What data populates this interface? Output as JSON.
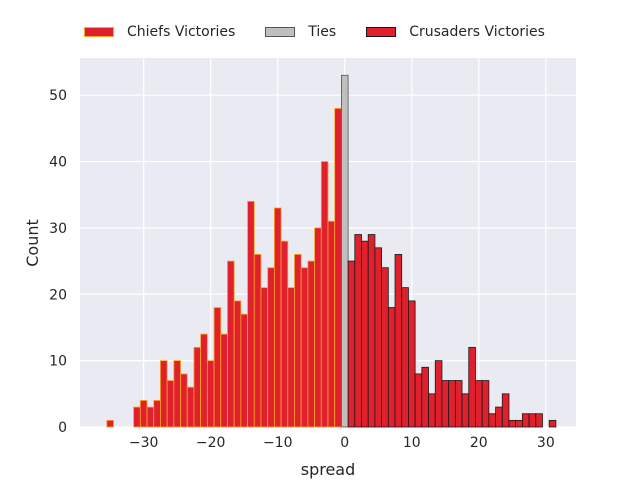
{
  "chart_data": {
    "type": "bar",
    "subtype": "histogram",
    "xlabel": "spread",
    "ylabel": "Count",
    "xlim": [
      -39.5,
      34.5
    ],
    "ylim": [
      0,
      55.6
    ],
    "xticks": [
      -30,
      -20,
      -10,
      0,
      10,
      20,
      30
    ],
    "yticks": [
      0,
      10,
      20,
      30,
      40,
      50
    ],
    "grid": true,
    "legend_position": "top",
    "bin_width": 1,
    "series": [
      {
        "name": "Chiefs Victories",
        "fill": "#e0202c",
        "edge": "#f5a623",
        "bins": [
          {
            "x": -35,
            "count": 1
          },
          {
            "x": -31,
            "count": 3
          },
          {
            "x": -30,
            "count": 4
          },
          {
            "x": -29,
            "count": 3
          },
          {
            "x": -28,
            "count": 4
          },
          {
            "x": -27,
            "count": 10
          },
          {
            "x": -26,
            "count": 7
          },
          {
            "x": -25,
            "count": 10
          },
          {
            "x": -24,
            "count": 8
          },
          {
            "x": -23,
            "count": 6
          },
          {
            "x": -22,
            "count": 12
          },
          {
            "x": -21,
            "count": 14
          },
          {
            "x": -20,
            "count": 10
          },
          {
            "x": -19,
            "count": 18
          },
          {
            "x": -18,
            "count": 14
          },
          {
            "x": -17,
            "count": 25
          },
          {
            "x": -16,
            "count": 19
          },
          {
            "x": -15,
            "count": 17
          },
          {
            "x": -14,
            "count": 34
          },
          {
            "x": -13,
            "count": 26
          },
          {
            "x": -12,
            "count": 21
          },
          {
            "x": -11,
            "count": 24
          },
          {
            "x": -10,
            "count": 33
          },
          {
            "x": -9,
            "count": 28
          },
          {
            "x": -8,
            "count": 21
          },
          {
            "x": -7,
            "count": 26
          },
          {
            "x": -6,
            "count": 24
          },
          {
            "x": -5,
            "count": 25
          },
          {
            "x": -4,
            "count": 30
          },
          {
            "x": -3,
            "count": 40
          },
          {
            "x": -2,
            "count": 31
          },
          {
            "x": -1,
            "count": 48
          }
        ]
      },
      {
        "name": "Ties",
        "fill": "#bfbfbf",
        "edge": "#555555",
        "bins": [
          {
            "x": 0,
            "count": 53
          }
        ]
      },
      {
        "name": "Crusaders Victories",
        "fill": "#e0202c",
        "edge": "#1a1a1a",
        "bins": [
          {
            "x": 1,
            "count": 25
          },
          {
            "x": 2,
            "count": 29
          },
          {
            "x": 3,
            "count": 28
          },
          {
            "x": 4,
            "count": 29
          },
          {
            "x": 5,
            "count": 27
          },
          {
            "x": 6,
            "count": 24
          },
          {
            "x": 7,
            "count": 18
          },
          {
            "x": 8,
            "count": 26
          },
          {
            "x": 9,
            "count": 21
          },
          {
            "x": 10,
            "count": 19
          },
          {
            "x": 11,
            "count": 8
          },
          {
            "x": 12,
            "count": 9
          },
          {
            "x": 13,
            "count": 5
          },
          {
            "x": 14,
            "count": 10
          },
          {
            "x": 15,
            "count": 7
          },
          {
            "x": 16,
            "count": 7
          },
          {
            "x": 17,
            "count": 7
          },
          {
            "x": 18,
            "count": 5
          },
          {
            "x": 19,
            "count": 12
          },
          {
            "x": 20,
            "count": 7
          },
          {
            "x": 21,
            "count": 7
          },
          {
            "x": 22,
            "count": 2
          },
          {
            "x": 23,
            "count": 3
          },
          {
            "x": 24,
            "count": 5
          },
          {
            "x": 25,
            "count": 1
          },
          {
            "x": 26,
            "count": 1
          },
          {
            "x": 27,
            "count": 2
          },
          {
            "x": 28,
            "count": 2
          },
          {
            "x": 29,
            "count": 2
          },
          {
            "x": 31,
            "count": 1
          }
        ]
      }
    ]
  }
}
